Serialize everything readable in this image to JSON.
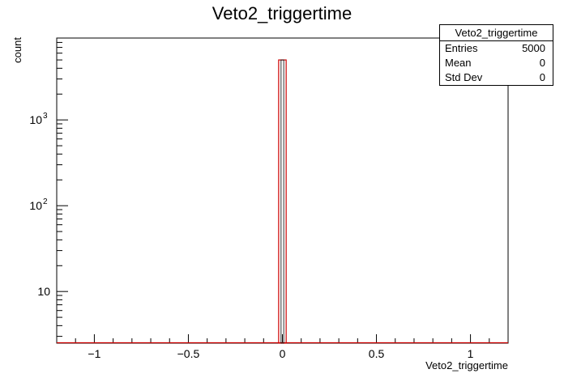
{
  "chart_data": {
    "type": "bar",
    "title": "Veto2_triggertime",
    "xlabel": "Veto2_triggertime",
    "ylabel": "count",
    "xlim": [
      -1.2,
      1.2
    ],
    "ylim_log": [
      2.5,
      9000
    ],
    "log_y": true,
    "x_ticks": [
      {
        "value": -1,
        "label": "−1"
      },
      {
        "value": -0.5,
        "label": "−0.5"
      },
      {
        "value": 0,
        "label": "0"
      },
      {
        "value": 0.5,
        "label": "0.5"
      },
      {
        "value": 1,
        "label": "1"
      }
    ],
    "y_ticks": [
      {
        "value": 10,
        "label": "10",
        "sup": ""
      },
      {
        "value": 100,
        "label": "10",
        "sup": "2"
      },
      {
        "value": 1000,
        "label": "10",
        "sup": "3"
      }
    ],
    "bins": [
      {
        "x_low": -0.02,
        "x_high": 0.02,
        "value": 5000
      }
    ],
    "line_color": "#cc0000",
    "stats": {
      "name": "Veto2_triggertime",
      "rows": [
        {
          "label": "Entries",
          "value": "5000"
        },
        {
          "label": "Mean",
          "value": "0"
        },
        {
          "label": "Std Dev",
          "value": "0"
        }
      ]
    }
  }
}
